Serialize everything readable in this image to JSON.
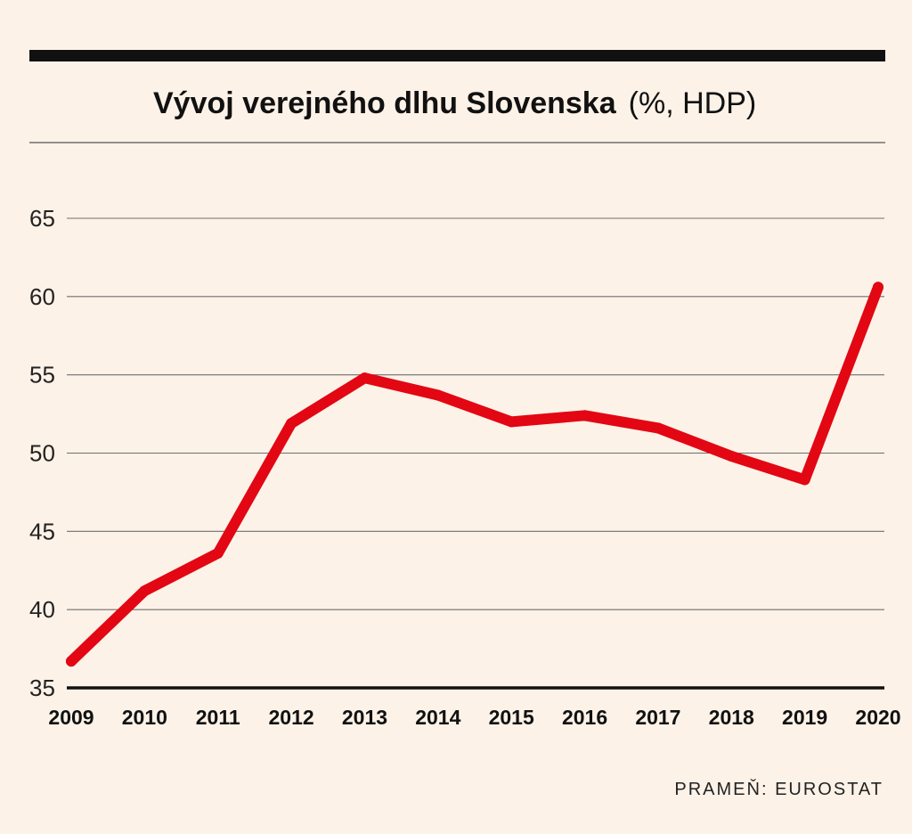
{
  "chart_data": {
    "type": "line",
    "title": "Vývoj verejného dlhu Slovenska",
    "title_suffix": "(%, HDP)",
    "xlabel": "",
    "ylabel": "",
    "categories": [
      "2009",
      "2010",
      "2011",
      "2012",
      "2013",
      "2014",
      "2015",
      "2016",
      "2017",
      "2018",
      "2019",
      "2020"
    ],
    "series": [
      {
        "values": [
          36.7,
          41.2,
          43.6,
          51.9,
          54.8,
          53.7,
          52.0,
          52.4,
          51.6,
          49.8,
          48.3,
          60.6
        ],
        "color": "#e30613"
      }
    ],
    "ylim": [
      35,
      65
    ],
    "yticks": [
      35,
      40,
      45,
      50,
      55,
      60,
      65
    ],
    "grid": true,
    "legend": "none"
  },
  "source": "PRAMEŇ: EUROSTAT"
}
